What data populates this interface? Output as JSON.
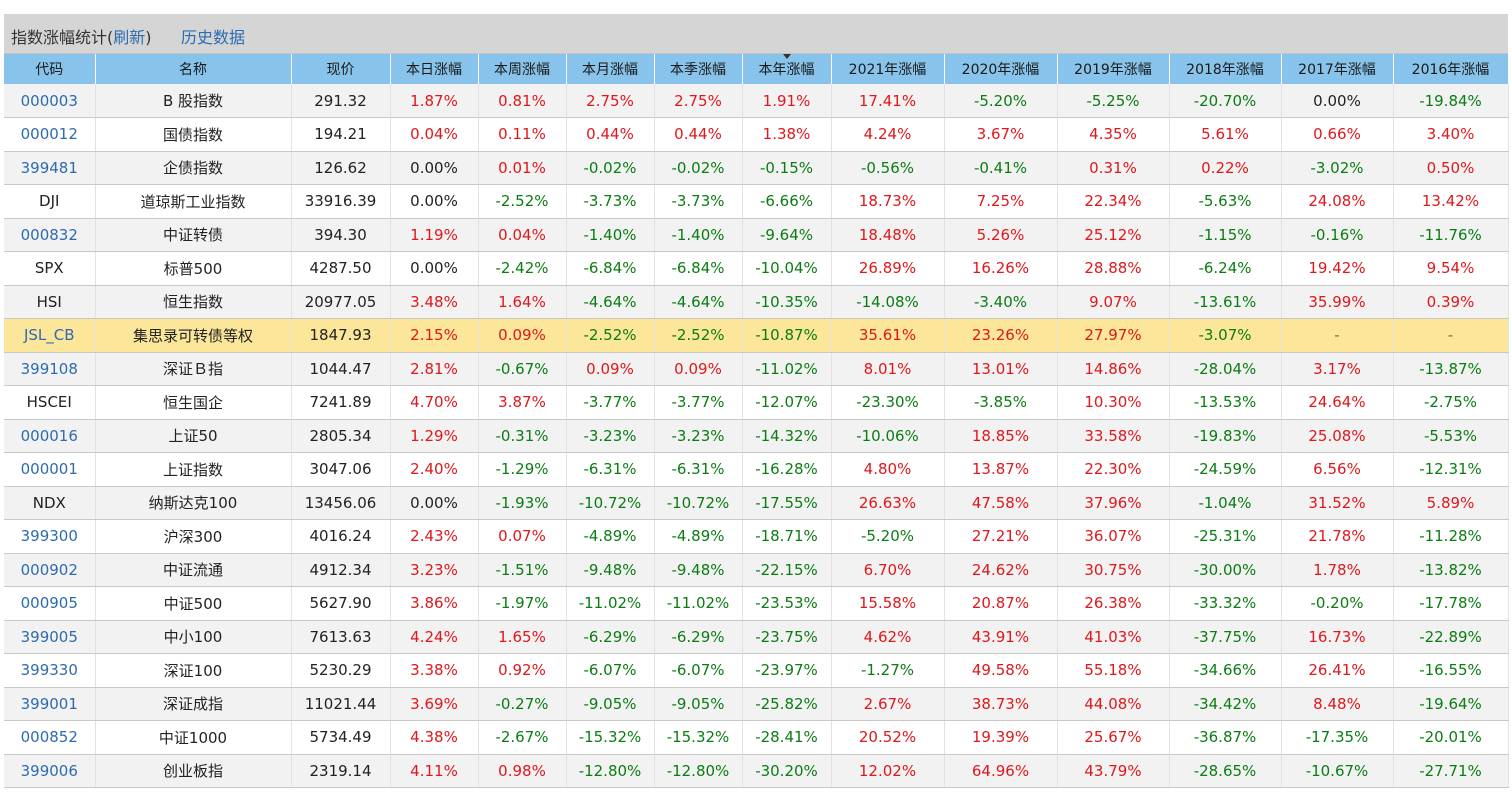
{
  "header": {
    "title": "指数涨幅统计",
    "open_paren": "(",
    "refresh_label": "刷新",
    "close_paren": ")",
    "history_label": "历史数据"
  },
  "columns": [
    "代码",
    "名称",
    "现价",
    "本日涨幅",
    "本周涨幅",
    "本月涨幅",
    "本季涨幅",
    "本年涨幅",
    "2021年涨幅",
    "2020年涨幅",
    "2019年涨幅",
    "2018年涨幅",
    "2017年涨幅",
    "2016年涨幅"
  ],
  "sorted_column_index": 7,
  "colors": {
    "positive": "#e0171b",
    "negative": "#0a7d12",
    "link": "#2d6bb0",
    "header_bg": "#87c3ea",
    "highlight_row": "#fbe69a"
  },
  "rows": [
    {
      "code": "000003",
      "link": true,
      "name": "B 股指数",
      "price": "291.32",
      "values": [
        "1.87%",
        "0.81%",
        "2.75%",
        "2.75%",
        "1.91%",
        "17.41%",
        "-5.20%",
        "-5.25%",
        "-20.70%",
        "0.00%",
        "-19.84%"
      ]
    },
    {
      "code": "000012",
      "link": true,
      "name": "国债指数",
      "price": "194.21",
      "values": [
        "0.04%",
        "0.11%",
        "0.44%",
        "0.44%",
        "1.38%",
        "4.24%",
        "3.67%",
        "4.35%",
        "5.61%",
        "0.66%",
        "3.40%"
      ]
    },
    {
      "code": "399481",
      "link": true,
      "name": "企债指数",
      "price": "126.62",
      "values": [
        "0.00%",
        "0.01%",
        "-0.02%",
        "-0.02%",
        "-0.15%",
        "-0.56%",
        "-0.41%",
        "0.31%",
        "0.22%",
        "-3.02%",
        "0.50%"
      ]
    },
    {
      "code": "DJI",
      "link": false,
      "name": "道琼斯工业指数",
      "price": "33916.39",
      "values": [
        "0.00%",
        "-2.52%",
        "-3.73%",
        "-3.73%",
        "-6.66%",
        "18.73%",
        "7.25%",
        "22.34%",
        "-5.63%",
        "24.08%",
        "13.42%"
      ]
    },
    {
      "code": "000832",
      "link": true,
      "name": "中证转债",
      "price": "394.30",
      "values": [
        "1.19%",
        "0.04%",
        "-1.40%",
        "-1.40%",
        "-9.64%",
        "18.48%",
        "5.26%",
        "25.12%",
        "-1.15%",
        "-0.16%",
        "-11.76%"
      ]
    },
    {
      "code": "SPX",
      "link": false,
      "name": "标普500",
      "price": "4287.50",
      "values": [
        "0.00%",
        "-2.42%",
        "-6.84%",
        "-6.84%",
        "-10.04%",
        "26.89%",
        "16.26%",
        "28.88%",
        "-6.24%",
        "19.42%",
        "9.54%"
      ]
    },
    {
      "code": "HSI",
      "link": false,
      "name": "恒生指数",
      "price": "20977.05",
      "values": [
        "3.48%",
        "1.64%",
        "-4.64%",
        "-4.64%",
        "-10.35%",
        "-14.08%",
        "-3.40%",
        "9.07%",
        "-13.61%",
        "35.99%",
        "0.39%"
      ]
    },
    {
      "code": "JSL_CB",
      "link": true,
      "highlight": true,
      "name": "集思录可转债等权",
      "price": "1847.93",
      "values": [
        "2.15%",
        "0.09%",
        "-2.52%",
        "-2.52%",
        "-10.87%",
        "35.61%",
        "23.26%",
        "27.97%",
        "-3.07%",
        "-",
        "-"
      ]
    },
    {
      "code": "399108",
      "link": true,
      "name": "深证Ｂ指",
      "price": "1044.47",
      "values": [
        "2.81%",
        "-0.67%",
        "0.09%",
        "0.09%",
        "-11.02%",
        "8.01%",
        "13.01%",
        "14.86%",
        "-28.04%",
        "3.17%",
        "-13.87%"
      ]
    },
    {
      "code": "HSCEI",
      "link": false,
      "name": "恒生国企",
      "price": "7241.89",
      "values": [
        "4.70%",
        "3.87%",
        "-3.77%",
        "-3.77%",
        "-12.07%",
        "-23.30%",
        "-3.85%",
        "10.30%",
        "-13.53%",
        "24.64%",
        "-2.75%"
      ]
    },
    {
      "code": "000016",
      "link": true,
      "name": "上证50",
      "price": "2805.34",
      "values": [
        "1.29%",
        "-0.31%",
        "-3.23%",
        "-3.23%",
        "-14.32%",
        "-10.06%",
        "18.85%",
        "33.58%",
        "-19.83%",
        "25.08%",
        "-5.53%"
      ]
    },
    {
      "code": "000001",
      "link": true,
      "name": "上证指数",
      "price": "3047.06",
      "values": [
        "2.40%",
        "-1.29%",
        "-6.31%",
        "-6.31%",
        "-16.28%",
        "4.80%",
        "13.87%",
        "22.30%",
        "-24.59%",
        "6.56%",
        "-12.31%"
      ]
    },
    {
      "code": "NDX",
      "link": false,
      "name": "纳斯达克100",
      "price": "13456.06",
      "values": [
        "0.00%",
        "-1.93%",
        "-10.72%",
        "-10.72%",
        "-17.55%",
        "26.63%",
        "47.58%",
        "37.96%",
        "-1.04%",
        "31.52%",
        "5.89%"
      ]
    },
    {
      "code": "399300",
      "link": true,
      "name": "沪深300",
      "price": "4016.24",
      "values": [
        "2.43%",
        "0.07%",
        "-4.89%",
        "-4.89%",
        "-18.71%",
        "-5.20%",
        "27.21%",
        "36.07%",
        "-25.31%",
        "21.78%",
        "-11.28%"
      ]
    },
    {
      "code": "000902",
      "link": true,
      "name": "中证流通",
      "price": "4912.34",
      "values": [
        "3.23%",
        "-1.51%",
        "-9.48%",
        "-9.48%",
        "-22.15%",
        "6.70%",
        "24.62%",
        "30.75%",
        "-30.00%",
        "1.78%",
        "-13.82%"
      ]
    },
    {
      "code": "000905",
      "link": true,
      "name": "中证500",
      "price": "5627.90",
      "values": [
        "3.86%",
        "-1.97%",
        "-11.02%",
        "-11.02%",
        "-23.53%",
        "15.58%",
        "20.87%",
        "26.38%",
        "-33.32%",
        "-0.20%",
        "-17.78%"
      ]
    },
    {
      "code": "399005",
      "link": true,
      "name": "中小100",
      "price": "7613.63",
      "values": [
        "4.24%",
        "1.65%",
        "-6.29%",
        "-6.29%",
        "-23.75%",
        "4.62%",
        "43.91%",
        "41.03%",
        "-37.75%",
        "16.73%",
        "-22.89%"
      ]
    },
    {
      "code": "399330",
      "link": true,
      "name": "深证100",
      "price": "5230.29",
      "values": [
        "3.38%",
        "0.92%",
        "-6.07%",
        "-6.07%",
        "-23.97%",
        "-1.27%",
        "49.58%",
        "55.18%",
        "-34.66%",
        "26.41%",
        "-16.55%"
      ]
    },
    {
      "code": "399001",
      "link": true,
      "name": "深证成指",
      "price": "11021.44",
      "values": [
        "3.69%",
        "-0.27%",
        "-9.05%",
        "-9.05%",
        "-25.82%",
        "2.67%",
        "38.73%",
        "44.08%",
        "-34.42%",
        "8.48%",
        "-19.64%"
      ]
    },
    {
      "code": "000852",
      "link": true,
      "name": "中证1000",
      "price": "5734.49",
      "values": [
        "4.38%",
        "-2.67%",
        "-15.32%",
        "-15.32%",
        "-28.41%",
        "20.52%",
        "19.39%",
        "25.67%",
        "-36.87%",
        "-17.35%",
        "-20.01%"
      ]
    },
    {
      "code": "399006",
      "link": true,
      "name": "创业板指",
      "price": "2319.14",
      "values": [
        "4.11%",
        "0.98%",
        "-12.80%",
        "-12.80%",
        "-30.20%",
        "12.02%",
        "64.96%",
        "43.79%",
        "-28.65%",
        "-10.67%",
        "-27.71%"
      ]
    }
  ]
}
